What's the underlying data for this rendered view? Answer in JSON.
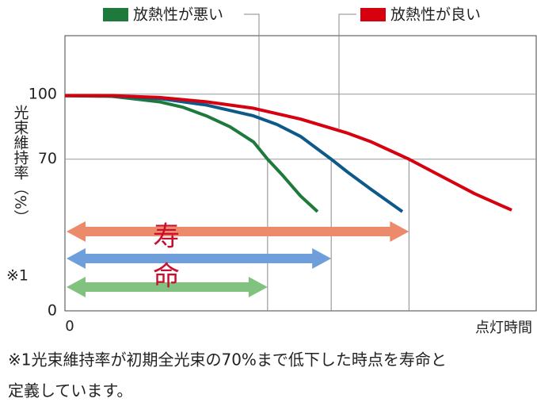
{
  "chart_data": {
    "type": "line",
    "y_label": "光束維持率（%）",
    "y_label_note": "※1",
    "x_label": "点灯時間",
    "xlim": [
      0,
      100
    ],
    "xticks": [
      0
    ],
    "ylim": [
      0,
      127
    ],
    "yticks": [
      0,
      70,
      100
    ],
    "grid": true,
    "series": [
      {
        "name": "放熱性が悪い",
        "color": "#1e7a3c",
        "x": [
          0,
          10,
          20,
          25,
          30,
          35,
          40,
          43,
          46,
          50,
          53.6
        ],
        "values": [
          99.3,
          99.0,
          96.5,
          94,
          90,
          85,
          78,
          70,
          63,
          53,
          45.8
        ]
      },
      {
        "color": "#0d5a8a",
        "x": [
          0,
          10,
          20,
          30,
          40,
          45,
          50,
          56.5,
          60,
          65,
          71.6
        ],
        "values": [
          99.3,
          99.2,
          98,
          95,
          90,
          86,
          80.5,
          70,
          64,
          56,
          45.8
        ]
      },
      {
        "name": "放熱性が良い",
        "color": "#d7000f",
        "x": [
          0,
          10,
          20,
          30,
          40,
          50,
          60,
          65,
          73,
          80,
          87,
          94.8
        ],
        "values": [
          99.3,
          99.3,
          98.5,
          96.5,
          93.5,
          88.5,
          82,
          78,
          70,
          62,
          54,
          46.5
        ]
      }
    ],
    "lifetimes": {
      "values": [
        73,
        56.5,
        43
      ],
      "colors": [
        "#ec8b6c",
        "#6f9fdb",
        "#82c281"
      ]
    },
    "annotation": [
      "寿",
      "命"
    ],
    "footnote": [
      "※1光束維持率が初期全光束の70%まで低下した時点を寿命と",
      "定義しています。"
    ]
  }
}
